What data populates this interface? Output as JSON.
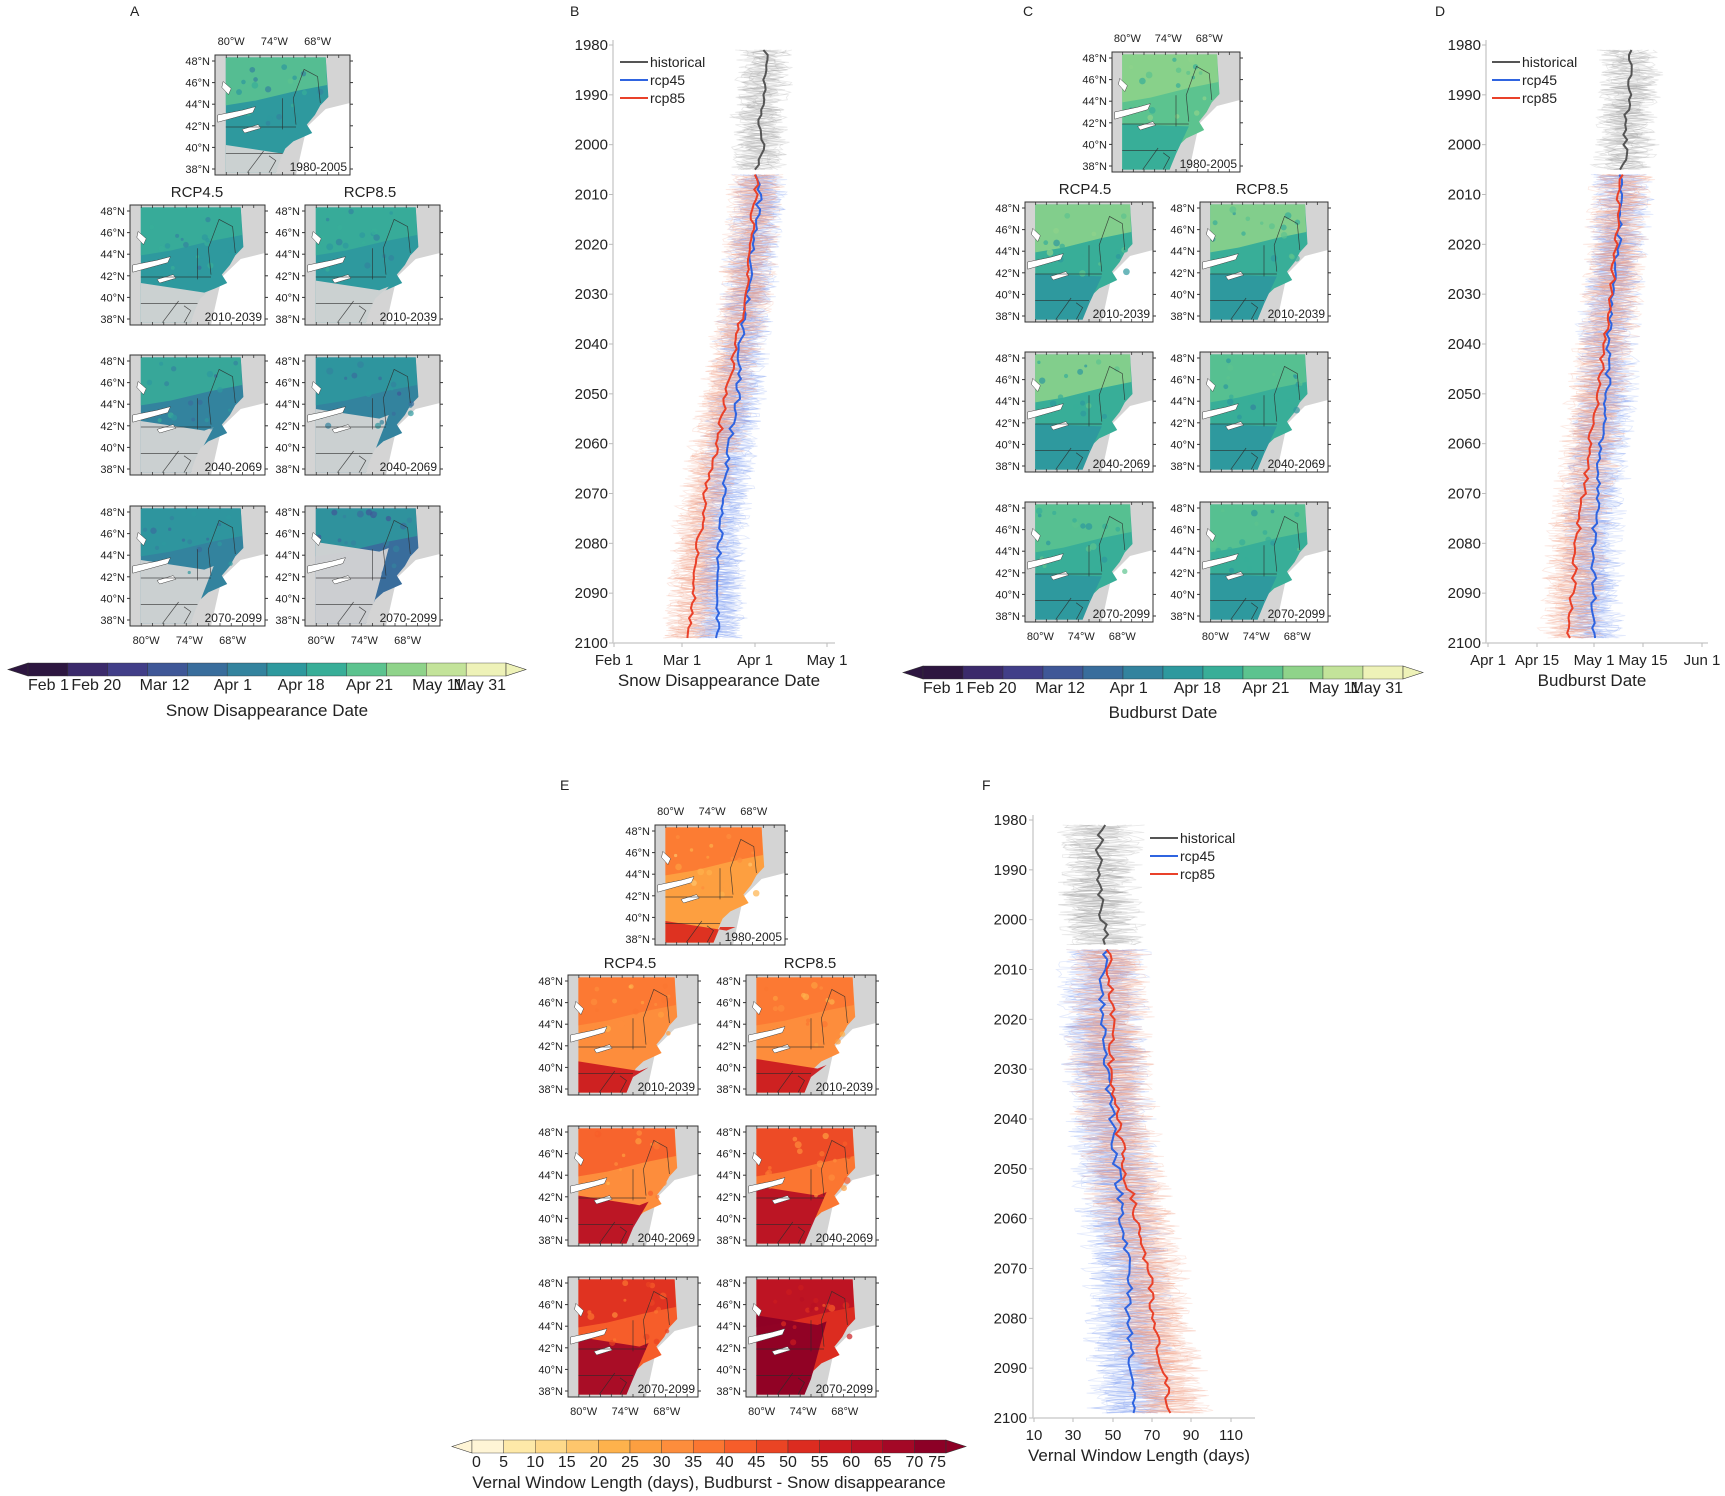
{
  "panels": {
    "A": {
      "label": "A"
    },
    "B": {
      "label": "B"
    },
    "C": {
      "label": "C"
    },
    "D": {
      "label": "D"
    },
    "E": {
      "label": "E"
    },
    "F": {
      "label": "F"
    }
  },
  "map_axes": {
    "lon_ticks": [
      "80°W",
      "74°W",
      "68°W"
    ],
    "lat_ticks": [
      "48°N",
      "46°N",
      "44°N",
      "42°N",
      "40°N",
      "38°N"
    ]
  },
  "scenario_headers": {
    "rcp45": "RCP4.5",
    "rcp85": "RCP8.5"
  },
  "map_periods": {
    "historical": "1980-2005",
    "p1": "2010-2039",
    "p2": "2040-2069",
    "p3": "2070-2099"
  },
  "map_panels": [
    {
      "panel": "A",
      "variable": "Snow Disappearance Date",
      "colormap": "viridis-like",
      "maps": [
        {
          "period": "1980-2005",
          "scenario": "historical",
          "mean_level": 0.55,
          "snow_free_extent": 0.25
        },
        {
          "period": "2010-2039",
          "scenario": "RCP4.5",
          "mean_level": 0.52,
          "snow_free_extent": 0.35
        },
        {
          "period": "2010-2039",
          "scenario": "RCP8.5",
          "mean_level": 0.52,
          "snow_free_extent": 0.37
        },
        {
          "period": "2040-2069",
          "scenario": "RCP4.5",
          "mean_level": 0.48,
          "snow_free_extent": 0.45
        },
        {
          "period": "2040-2069",
          "scenario": "RCP8.5",
          "mean_level": 0.45,
          "snow_free_extent": 0.55
        },
        {
          "period": "2070-2099",
          "scenario": "RCP4.5",
          "mean_level": 0.45,
          "snow_free_extent": 0.55
        },
        {
          "period": "2070-2099",
          "scenario": "RCP8.5",
          "mean_level": 0.38,
          "snow_free_extent": 0.7
        }
      ],
      "colorbar": {
        "labels": [
          "Feb 1",
          "Feb 20",
          "Mar 12",
          "Apr 1",
          "Apr 18",
          "Apr 21",
          "May 11",
          "May 31"
        ],
        "title": "Snow Disappearance Date",
        "colors": [
          "#2d1640",
          "#3b2a6b",
          "#413e88",
          "#3f5797",
          "#396d9c",
          "#33839e",
          "#2e999e",
          "#38ae98",
          "#5cc38f",
          "#8fd38a",
          "#c3e39a",
          "#eef2b8"
        ]
      }
    },
    {
      "panel": "C",
      "variable": "Budburst Date",
      "colormap": "viridis-like",
      "maps": [
        {
          "period": "1980-2005",
          "scenario": "historical",
          "mean_level": 0.68,
          "snow_free_extent": 0
        },
        {
          "period": "2010-2039",
          "scenario": "RCP4.5",
          "mean_level": 0.66,
          "snow_free_extent": 0
        },
        {
          "period": "2010-2039",
          "scenario": "RCP8.5",
          "mean_level": 0.65,
          "snow_free_extent": 0
        },
        {
          "period": "2040-2069",
          "scenario": "RCP4.5",
          "mean_level": 0.64,
          "snow_free_extent": 0
        },
        {
          "period": "2040-2069",
          "scenario": "RCP8.5",
          "mean_level": 0.62,
          "snow_free_extent": 0
        },
        {
          "period": "2070-2099",
          "scenario": "RCP4.5",
          "mean_level": 0.62,
          "snow_free_extent": 0
        },
        {
          "period": "2070-2099",
          "scenario": "RCP8.5",
          "mean_level": 0.6,
          "snow_free_extent": 0
        }
      ],
      "colorbar": {
        "labels": [
          "Feb 1",
          "Feb 20",
          "Mar 12",
          "Apr 1",
          "Apr 18",
          "Apr 21",
          "May 11",
          "May 31"
        ],
        "title": "Budburst Date",
        "colors": [
          "#2d1640",
          "#3b2a6b",
          "#413e88",
          "#3f5797",
          "#396d9c",
          "#33839e",
          "#2e999e",
          "#38ae98",
          "#5cc38f",
          "#8fd38a",
          "#c3e39a",
          "#eef2b8"
        ]
      }
    },
    {
      "panel": "E",
      "variable": "Vernal Window Length (days)",
      "colormap": "YlOrRd",
      "maps": [
        {
          "period": "1980-2005",
          "scenario": "historical",
          "mean_level": 0.35,
          "snow_free_extent": 0.2
        },
        {
          "period": "2010-2039",
          "scenario": "RCP4.5",
          "mean_level": 0.4,
          "snow_free_extent": 0.28
        },
        {
          "period": "2010-2039",
          "scenario": "RCP8.5",
          "mean_level": 0.4,
          "snow_free_extent": 0.3
        },
        {
          "period": "2040-2069",
          "scenario": "RCP4.5",
          "mean_level": 0.45,
          "snow_free_extent": 0.42
        },
        {
          "period": "2040-2069",
          "scenario": "RCP8.5",
          "mean_level": 0.5,
          "snow_free_extent": 0.5
        },
        {
          "period": "2070-2099",
          "scenario": "RCP4.5",
          "mean_level": 0.55,
          "snow_free_extent": 0.5
        },
        {
          "period": "2070-2099",
          "scenario": "RCP8.5",
          "mean_level": 0.72,
          "snow_free_extent": 0.68
        }
      ],
      "colorbar": {
        "labels": [
          "0",
          "5",
          "10",
          "15",
          "20",
          "25",
          "30",
          "35",
          "40",
          "45",
          "50",
          "55",
          "60",
          "65",
          "70",
          "75"
        ],
        "title": "Vernal Window Length (days), Budburst - Snow disappearance",
        "colors": [
          "#fff5d6",
          "#fee9a8",
          "#fed98a",
          "#fec66c",
          "#feb24c",
          "#fd9f40",
          "#fd8d3c",
          "#fb7631",
          "#f65d2a",
          "#ea4424",
          "#dc2c20",
          "#cb1b20",
          "#b81024",
          "#a40826",
          "#8c0026"
        ]
      }
    }
  ],
  "chart_data": [
    {
      "panel": "B",
      "type": "line",
      "title": "",
      "xlabel": "Snow Disappearance Date",
      "ylabel": "",
      "orientation": "horizontal-time (year on y-axis, reversed)",
      "x_ticks": [
        "Feb 1",
        "Mar 1",
        "Apr 1",
        "May 1"
      ],
      "x_tick_days": [
        0,
        28,
        59,
        89
      ],
      "xlim_days": [
        0,
        95
      ],
      "y_ticks": [
        1980,
        1990,
        2000,
        2010,
        2020,
        2030,
        2040,
        2050,
        2060,
        2070,
        2080,
        2090,
        2100
      ],
      "ylim": [
        1980,
        2100
      ],
      "legend": {
        "position": "top-left",
        "entries": [
          "historical",
          "rcp45",
          "rcp85"
        ]
      },
      "series": [
        {
          "name": "historical",
          "color": "#555555",
          "years": [
            1981,
            1985,
            1990,
            1995,
            2000,
            2005
          ],
          "values": [
            63,
            64,
            62,
            61,
            62,
            60
          ]
        },
        {
          "name": "rcp45",
          "color": "#2f64e0",
          "years": [
            2006,
            2010,
            2020,
            2030,
            2040,
            2050,
            2060,
            2070,
            2080,
            2090,
            2099
          ],
          "values": [
            60,
            61,
            58,
            56,
            53,
            52,
            48,
            46,
            44,
            43,
            43
          ]
        },
        {
          "name": "rcp85",
          "color": "#e9412a",
          "years": [
            2006,
            2010,
            2020,
            2030,
            2040,
            2050,
            2060,
            2070,
            2080,
            2090,
            2099
          ],
          "values": [
            60,
            59,
            57,
            55,
            51,
            47,
            43,
            38,
            35,
            33,
            30
          ]
        }
      ],
      "spread_days": 12
    },
    {
      "panel": "D",
      "type": "line",
      "title": "",
      "xlabel": "Budburst Date",
      "ylabel": "",
      "orientation": "horizontal-time (year on y-axis, reversed)",
      "x_ticks": [
        "Apr 1",
        "Apr 15",
        "May 1",
        "May 15",
        "Jun 1"
      ],
      "x_tick_days": [
        0,
        14,
        30,
        44,
        61
      ],
      "xlim_days": [
        0,
        61
      ],
      "y_ticks": [
        1980,
        1990,
        2000,
        2010,
        2020,
        2030,
        2040,
        2050,
        2060,
        2070,
        2080,
        2090,
        2100
      ],
      "ylim": [
        1980,
        2100
      ],
      "legend": {
        "position": "top-left",
        "entries": [
          "historical",
          "rcp45",
          "rcp85"
        ]
      },
      "series": [
        {
          "name": "historical",
          "color": "#555555",
          "years": [
            1981,
            1985,
            1990,
            1995,
            2000,
            2005
          ],
          "values": [
            40,
            41,
            40,
            39,
            39,
            38
          ]
        },
        {
          "name": "rcp45",
          "color": "#2f64e0",
          "years": [
            2006,
            2010,
            2020,
            2030,
            2040,
            2050,
            2060,
            2070,
            2080,
            2090,
            2099
          ],
          "values": [
            38,
            38,
            37,
            35,
            34,
            34,
            32,
            31,
            30,
            30,
            30
          ]
        },
        {
          "name": "rcp85",
          "color": "#e9412a",
          "years": [
            2006,
            2010,
            2020,
            2030,
            2040,
            2050,
            2060,
            2070,
            2080,
            2090,
            2099
          ],
          "values": [
            38,
            37,
            36,
            35,
            33,
            31,
            29,
            27,
            25,
            24,
            23
          ]
        }
      ],
      "spread_days": 9
    },
    {
      "panel": "F",
      "type": "line",
      "title": "",
      "xlabel": "Vernal Window Length (days)",
      "ylabel": "",
      "orientation": "horizontal-time (year on y-axis, reversed)",
      "x_ticks": [
        "10",
        "30",
        "50",
        "70",
        "90",
        "110"
      ],
      "x_tick_days": [
        10,
        30,
        50,
        70,
        90,
        110
      ],
      "xlim_days": [
        10,
        120
      ],
      "y_ticks": [
        1980,
        1990,
        2000,
        2010,
        2020,
        2030,
        2040,
        2050,
        2060,
        2070,
        2080,
        2090,
        2100
      ],
      "ylim": [
        1980,
        2100
      ],
      "legend": {
        "position": "top-right",
        "entries": [
          "historical",
          "rcp45",
          "rcp85"
        ]
      },
      "series": [
        {
          "name": "historical",
          "color": "#555555",
          "years": [
            1981,
            1985,
            1990,
            1995,
            2000,
            2005
          ],
          "values": [
            45,
            43,
            44,
            43,
            45,
            46
          ]
        },
        {
          "name": "rcp45",
          "color": "#2f64e0",
          "years": [
            2006,
            2010,
            2020,
            2030,
            2040,
            2050,
            2060,
            2070,
            2080,
            2090,
            2099
          ],
          "values": [
            47,
            45,
            45,
            47,
            50,
            52,
            55,
            58,
            58,
            60,
            60
          ]
        },
        {
          "name": "rcp85",
          "color": "#e9412a",
          "years": [
            2006,
            2010,
            2020,
            2030,
            2040,
            2050,
            2060,
            2070,
            2080,
            2090,
            2099
          ],
          "values": [
            48,
            48,
            49,
            49,
            52,
            56,
            62,
            68,
            70,
            75,
            80
          ]
        }
      ],
      "spread_days": 22
    }
  ]
}
